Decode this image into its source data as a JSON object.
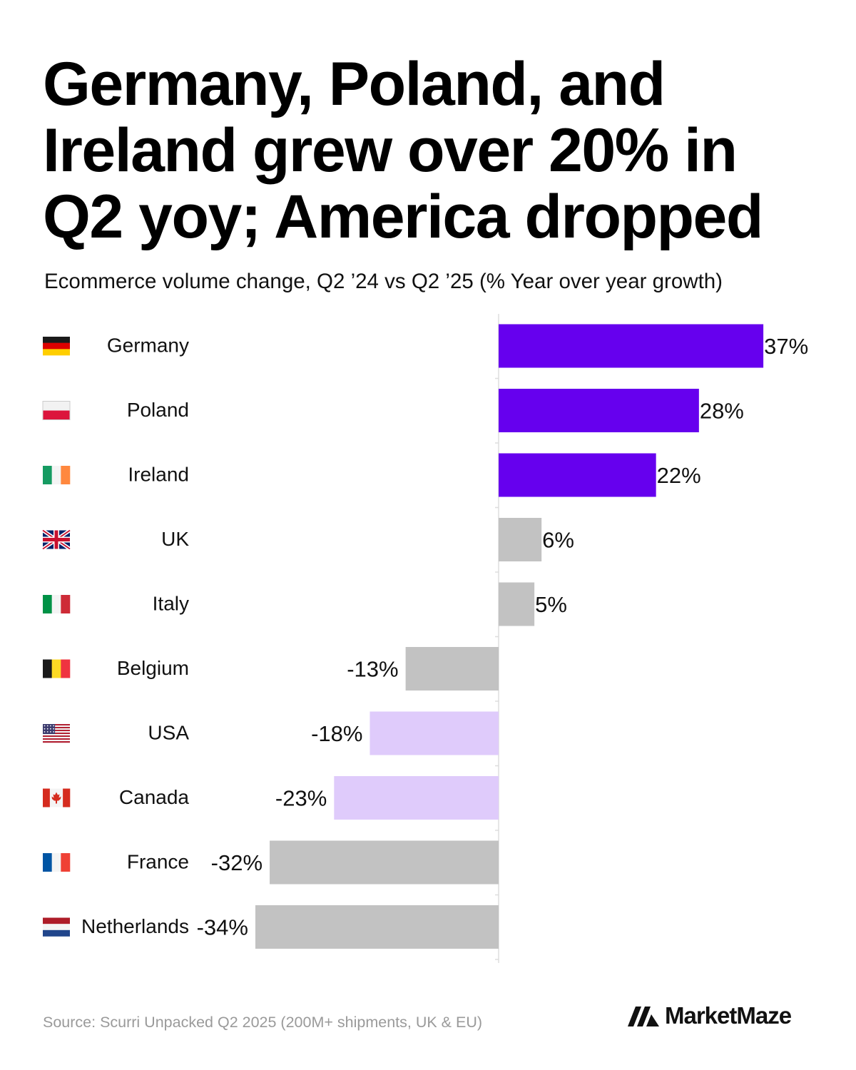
{
  "title": "Germany, Poland, and Ireland grew over 20% in Q2 yoy; America dropped",
  "subtitle": "Ecommerce volume change, Q2 ’24 vs Q2 ’25 (% Year over year growth)",
  "source": "Source: Scurri Unpacked Q2 2025 (200M+ shipments, UK & EU)",
  "brand": {
    "name": "MarketMaze",
    "logo_icon": "marketmaze-logo-icon"
  },
  "colors": {
    "highlight_positive": "#6600ee",
    "highlight_negative": "#dfcbfb",
    "neutral": "#c2c2c2",
    "axis": "#dddddd"
  },
  "chart_data": {
    "type": "bar",
    "orientation": "horizontal",
    "categories": [
      "Germany",
      "Poland",
      "Ireland",
      "UK",
      "Italy",
      "Belgium",
      "USA",
      "Canada",
      "France",
      "Netherlands"
    ],
    "flags": [
      "flag-germany-icon",
      "flag-poland-icon",
      "flag-ireland-icon",
      "flag-uk-icon",
      "flag-italy-icon",
      "flag-belgium-icon",
      "flag-usa-icon",
      "flag-canada-icon",
      "flag-france-icon",
      "flag-netherlands-icon"
    ],
    "values": [
      37,
      28,
      22,
      6,
      5,
      -13,
      -18,
      -23,
      -32,
      -34
    ],
    "labels": [
      "37%",
      "28%",
      "22%",
      "6%",
      "5%",
      "-13%",
      "-18%",
      "-23%",
      "-32%",
      "-34%"
    ],
    "bar_colors": [
      "#6600ee",
      "#6600ee",
      "#6600ee",
      "#c2c2c2",
      "#c2c2c2",
      "#c2c2c2",
      "#dfcbfb",
      "#dfcbfb",
      "#c2c2c2",
      "#c2c2c2"
    ],
    "xlim": [
      -34,
      37
    ],
    "xlabel": "",
    "ylabel": "",
    "grid": false,
    "legend": "none"
  }
}
